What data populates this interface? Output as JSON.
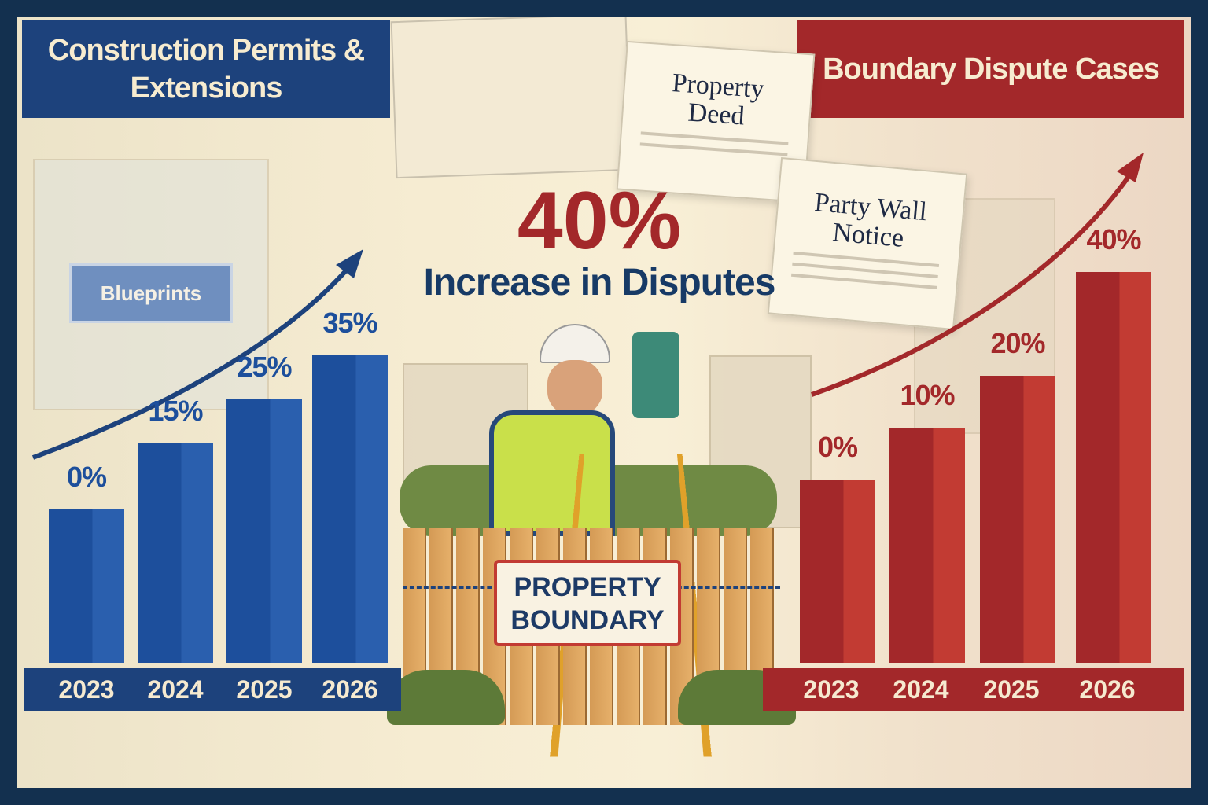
{
  "colors": {
    "frame": "#13304f",
    "blue": "#1d4f9c",
    "blue_dark": "#1d427c",
    "red": "#b3302c",
    "red_dark": "#a3282a",
    "cream": "#f6ecd2"
  },
  "headline": {
    "value": "40%",
    "text": "Increase in Disputes"
  },
  "documents": [
    {
      "title_line1": "Property",
      "title_line2": "Deed"
    },
    {
      "title_line1": "Party Wall",
      "title_line2": "Notice"
    }
  ],
  "blueprints_label": "Blueprints",
  "sign": {
    "line1": "PROPERTY",
    "line2": "BOUNDARY"
  },
  "chart_data": [
    {
      "type": "bar",
      "title": "Construction Permits & Extensions",
      "categories": [
        "2023",
        "2024",
        "2025",
        "2026"
      ],
      "values": [
        0,
        15,
        25,
        35
      ],
      "labels": [
        "0%",
        "15%",
        "25%",
        "35%"
      ],
      "color": "#1d4f9c",
      "trend_arrow": "up"
    },
    {
      "type": "bar",
      "title": "Boundary Dispute Cases",
      "categories": [
        "2023",
        "2024",
        "2025",
        "2026"
      ],
      "values": [
        0,
        10,
        20,
        40
      ],
      "labels": [
        "0%",
        "10%",
        "20%",
        "40%"
      ],
      "color": "#b3302c",
      "trend_arrow": "up"
    }
  ]
}
